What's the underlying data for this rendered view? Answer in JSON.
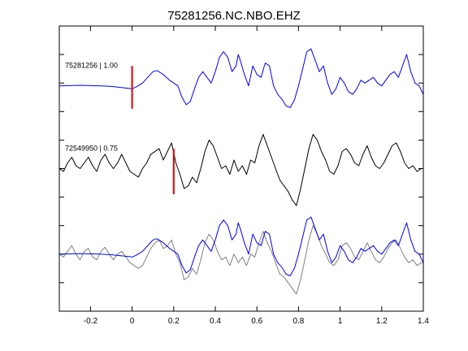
{
  "chart_data": {
    "type": "line",
    "title": "75281256.NC.NBO.EHZ",
    "xlabel": "",
    "ylabel": "",
    "xlim": [
      -0.35,
      1.4
    ],
    "ylim": [
      0,
      5
    ],
    "x_ticks": [
      {
        "value": -0.2,
        "label": "-0.2"
      },
      {
        "value": 0,
        "label": "0"
      },
      {
        "value": 0.2,
        "label": "0.2"
      },
      {
        "value": 0.4,
        "label": "0.4"
      },
      {
        "value": 0.6,
        "label": "0.6"
      },
      {
        "value": 0.8,
        "label": "0.8"
      },
      {
        "value": 1,
        "label": "1"
      },
      {
        "value": 1.2,
        "label": "1.2"
      },
      {
        "value": 1.4,
        "label": "1.4"
      }
    ],
    "y_ticks": [
      0.5,
      1.0,
      1.5,
      2.0,
      2.5,
      3.0,
      3.5,
      4.0,
      4.5
    ],
    "grid": false,
    "colors": {
      "blue": "#0000ff",
      "black": "#000000",
      "gray": "#808080",
      "pick": "#e00000"
    },
    "series": [
      {
        "label": "75281256 | 1.00",
        "color": "#0000ff",
        "width": 1,
        "x": [
          -0.35,
          -0.25,
          -0.15,
          -0.1,
          -0.05,
          0,
          0.02,
          0.05,
          0.08,
          0.1,
          0.12,
          0.15,
          0.18,
          0.2,
          0.22,
          0.24,
          0.26,
          0.28,
          0.3,
          0.32,
          0.34,
          0.36,
          0.38,
          0.4,
          0.42,
          0.44,
          0.46,
          0.48,
          0.5,
          0.51,
          0.52,
          0.54,
          0.56,
          0.58,
          0.6,
          0.62,
          0.64,
          0.66,
          0.68,
          0.7,
          0.72,
          0.74,
          0.76,
          0.78,
          0.8,
          0.82,
          0.84,
          0.86,
          0.88,
          0.9,
          0.92,
          0.94,
          0.96,
          0.98,
          1,
          1.02,
          1.04,
          1.06,
          1.08,
          1.1,
          1.12,
          1.14,
          1.16,
          1.18,
          1.2,
          1.22,
          1.24,
          1.26,
          1.28,
          1.3,
          1.32,
          1.34,
          1.36,
          1.38,
          1.4
        ],
        "y": [
          3.95,
          3.96,
          3.95,
          3.94,
          3.92,
          3.9,
          3.93,
          4.0,
          4.12,
          4.2,
          4.22,
          4.15,
          4.05,
          4.0,
          3.95,
          3.75,
          3.62,
          3.68,
          3.9,
          4.1,
          4.2,
          4.1,
          4.0,
          4.2,
          4.45,
          4.55,
          4.45,
          4.2,
          4.3,
          4.5,
          4.4,
          4.15,
          3.95,
          4.3,
          4.15,
          4.1,
          4.35,
          4.3,
          3.95,
          3.8,
          3.72,
          3.6,
          3.57,
          3.7,
          3.95,
          4.25,
          4.55,
          4.6,
          4.4,
          4.2,
          4.3,
          4.0,
          3.8,
          3.9,
          4.1,
          4.0,
          3.85,
          3.8,
          3.9,
          4.05,
          4.0,
          4.05,
          4.1,
          4.0,
          3.95,
          4.05,
          4.15,
          4.2,
          4.1,
          4.3,
          4.5,
          4.2,
          4.0,
          3.95,
          3.8
        ]
      },
      {
        "label": "72549950 | 0.75",
        "color": "#000000",
        "width": 1,
        "x": [
          -0.35,
          -0.33,
          -0.31,
          -0.29,
          -0.27,
          -0.25,
          -0.23,
          -0.21,
          -0.19,
          -0.17,
          -0.15,
          -0.13,
          -0.11,
          -0.09,
          -0.07,
          -0.05,
          -0.03,
          -0.01,
          0.01,
          0.03,
          0.05,
          0.07,
          0.09,
          0.11,
          0.13,
          0.15,
          0.17,
          0.19,
          0.21,
          0.23,
          0.25,
          0.27,
          0.29,
          0.31,
          0.33,
          0.35,
          0.37,
          0.39,
          0.41,
          0.43,
          0.45,
          0.47,
          0.49,
          0.51,
          0.53,
          0.55,
          0.57,
          0.59,
          0.61,
          0.63,
          0.65,
          0.67,
          0.69,
          0.71,
          0.73,
          0.75,
          0.77,
          0.79,
          0.81,
          0.83,
          0.85,
          0.87,
          0.89,
          0.91,
          0.93,
          0.95,
          0.97,
          0.99,
          1.01,
          1.03,
          1.05,
          1.07,
          1.09,
          1.11,
          1.13,
          1.15,
          1.17,
          1.19,
          1.21,
          1.23,
          1.25,
          1.27,
          1.29,
          1.31,
          1.33,
          1.35,
          1.37,
          1.39,
          1.4
        ],
        "y": [
          2.5,
          2.45,
          2.6,
          2.7,
          2.55,
          2.5,
          2.6,
          2.7,
          2.55,
          2.45,
          2.65,
          2.75,
          2.6,
          2.5,
          2.6,
          2.75,
          2.6,
          2.45,
          2.4,
          2.35,
          2.5,
          2.6,
          2.75,
          2.8,
          2.85,
          2.65,
          2.8,
          2.95,
          2.6,
          2.4,
          2.15,
          2.2,
          2.35,
          2.25,
          2.5,
          2.8,
          3.0,
          2.9,
          2.7,
          2.5,
          2.55,
          2.4,
          2.65,
          2.45,
          2.55,
          2.4,
          2.65,
          2.6,
          2.9,
          3.1,
          2.9,
          2.7,
          2.5,
          2.3,
          2.2,
          2.1,
          1.95,
          1.85,
          2.15,
          2.5,
          2.85,
          3.1,
          3.0,
          2.8,
          2.65,
          2.45,
          2.4,
          2.55,
          2.8,
          2.85,
          2.75,
          2.6,
          2.55,
          2.75,
          2.9,
          2.7,
          2.55,
          2.5,
          2.6,
          2.75,
          2.9,
          2.95,
          2.8,
          2.6,
          2.5,
          2.55,
          2.45,
          2.5,
          2.5
        ]
      },
      {
        "label": "",
        "color": "#808080",
        "width": 1,
        "x": [
          -0.35,
          -0.33,
          -0.31,
          -0.29,
          -0.27,
          -0.25,
          -0.23,
          -0.21,
          -0.19,
          -0.17,
          -0.15,
          -0.13,
          -0.11,
          -0.09,
          -0.07,
          -0.05,
          -0.03,
          -0.01,
          0.01,
          0.03,
          0.05,
          0.07,
          0.09,
          0.11,
          0.13,
          0.15,
          0.17,
          0.19,
          0.21,
          0.23,
          0.25,
          0.27,
          0.29,
          0.31,
          0.33,
          0.35,
          0.37,
          0.39,
          0.41,
          0.43,
          0.45,
          0.47,
          0.49,
          0.51,
          0.53,
          0.55,
          0.57,
          0.59,
          0.61,
          0.63,
          0.65,
          0.67,
          0.69,
          0.71,
          0.73,
          0.75,
          0.77,
          0.79,
          0.81,
          0.83,
          0.85,
          0.87,
          0.89,
          0.91,
          0.93,
          0.95,
          0.97,
          0.99,
          1.01,
          1.03,
          1.05,
          1.07,
          1.09,
          1.11,
          1.13,
          1.15,
          1.17,
          1.19,
          1.21,
          1.23,
          1.25,
          1.27,
          1.29,
          1.31,
          1.33,
          1.35,
          1.37,
          1.39,
          1.4
        ],
        "y": [
          1.0,
          0.95,
          1.05,
          1.15,
          1.0,
          0.9,
          1.05,
          1.1,
          0.95,
          0.9,
          1.05,
          1.12,
          1.0,
          0.9,
          1.0,
          1.05,
          0.95,
          0.85,
          0.8,
          0.75,
          0.8,
          0.95,
          1.1,
          1.2,
          1.25,
          1.1,
          1.15,
          1.25,
          1.0,
          0.85,
          0.55,
          0.6,
          0.75,
          0.65,
          0.9,
          1.2,
          1.35,
          1.25,
          1.05,
          0.9,
          0.95,
          0.8,
          1.0,
          0.85,
          0.95,
          0.8,
          1.0,
          0.95,
          1.2,
          1.4,
          1.2,
          1.05,
          0.85,
          0.65,
          0.6,
          0.5,
          0.4,
          0.3,
          0.55,
          0.9,
          1.25,
          1.5,
          1.35,
          1.15,
          1.0,
          0.85,
          0.8,
          0.9,
          1.15,
          1.2,
          1.1,
          0.95,
          0.9,
          1.05,
          1.2,
          1.05,
          0.9,
          0.85,
          0.95,
          1.1,
          1.2,
          1.25,
          1.1,
          0.95,
          0.85,
          0.9,
          0.8,
          0.85,
          0.85
        ]
      },
      {
        "label": "",
        "color": "#0000ff",
        "width": 1,
        "x": [
          -0.35,
          -0.25,
          -0.15,
          -0.1,
          -0.05,
          0,
          0.02,
          0.05,
          0.08,
          0.1,
          0.12,
          0.15,
          0.18,
          0.2,
          0.22,
          0.24,
          0.26,
          0.28,
          0.3,
          0.32,
          0.34,
          0.36,
          0.38,
          0.4,
          0.42,
          0.44,
          0.46,
          0.48,
          0.5,
          0.51,
          0.52,
          0.54,
          0.56,
          0.58,
          0.6,
          0.62,
          0.64,
          0.66,
          0.68,
          0.7,
          0.72,
          0.74,
          0.76,
          0.78,
          0.8,
          0.82,
          0.84,
          0.86,
          0.88,
          0.9,
          0.92,
          0.94,
          0.96,
          0.98,
          1,
          1.02,
          1.04,
          1.06,
          1.08,
          1.1,
          1.12,
          1.14,
          1.16,
          1.18,
          1.2,
          1.22,
          1.24,
          1.26,
          1.28,
          1.3,
          1.32,
          1.34,
          1.36,
          1.38,
          1.4
        ],
        "y": [
          1.0,
          1.01,
          1.0,
          0.99,
          0.97,
          0.95,
          0.98,
          1.05,
          1.17,
          1.25,
          1.27,
          1.2,
          1.1,
          1.05,
          1.0,
          0.8,
          0.67,
          0.73,
          0.95,
          1.15,
          1.25,
          1.15,
          1.05,
          1.25,
          1.5,
          1.6,
          1.5,
          1.25,
          1.35,
          1.55,
          1.45,
          1.2,
          1.0,
          1.35,
          1.2,
          1.15,
          1.4,
          1.35,
          1.0,
          0.85,
          0.77,
          0.65,
          0.62,
          0.75,
          1.0,
          1.3,
          1.6,
          1.65,
          1.45,
          1.25,
          1.35,
          1.05,
          0.85,
          0.95,
          1.15,
          1.05,
          0.9,
          0.85,
          0.95,
          1.1,
          1.05,
          1.1,
          1.15,
          1.05,
          1.0,
          1.1,
          1.2,
          1.25,
          1.15,
          1.35,
          1.55,
          1.25,
          1.05,
          1.0,
          0.85
        ]
      }
    ],
    "picks": [
      {
        "x": 0,
        "y_top": 4.3,
        "y_bottom": 3.55,
        "color": "#e00000"
      },
      {
        "x": 0.2,
        "y_top": 2.85,
        "y_bottom": 2.05,
        "color": "#e00000"
      }
    ]
  }
}
